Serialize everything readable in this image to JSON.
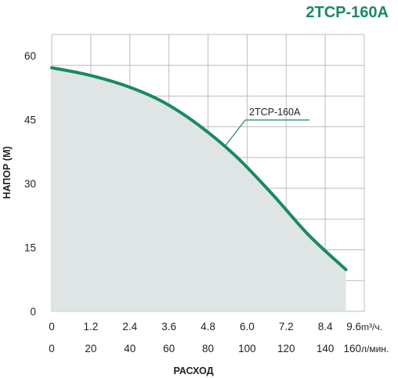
{
  "chart_data": {
    "type": "area",
    "title": "2TCP-160A",
    "ylabel": "НАПОР (М)",
    "xlabel": "РАСХОД",
    "ylim": [
      0,
      65
    ],
    "xlim": [
      0,
      10.2
    ],
    "grid": true,
    "y_ticks": [
      "0",
      "15",
      "30",
      "45",
      "60"
    ],
    "x_ticks_m3h": [
      "0",
      "1.2",
      "2.4",
      "3.6",
      "4.8",
      "6.0",
      "7.2",
      "8.4",
      "9.6"
    ],
    "x_unit_m3h": "m³/ч.",
    "x_ticks_lmin": [
      "0",
      "20",
      "40",
      "60",
      "80",
      "100",
      "120",
      "140",
      "160"
    ],
    "x_unit_lmin": "л/мин.",
    "series": [
      {
        "name": "2TCP-160A",
        "x": [
          0,
          1.2,
          2.4,
          3.6,
          4.8,
          6.0,
          7.2,
          8.4,
          9.6
        ],
        "y": [
          57.2,
          55.5,
          53.0,
          49.3,
          43.7,
          36.5,
          27.5,
          17.8,
          9.8
        ]
      }
    ],
    "colors": {
      "line": "#1a8a5e",
      "fill": "#dfe5e4",
      "grid": "#bdbdbd",
      "title": "#1a8a5e"
    }
  }
}
